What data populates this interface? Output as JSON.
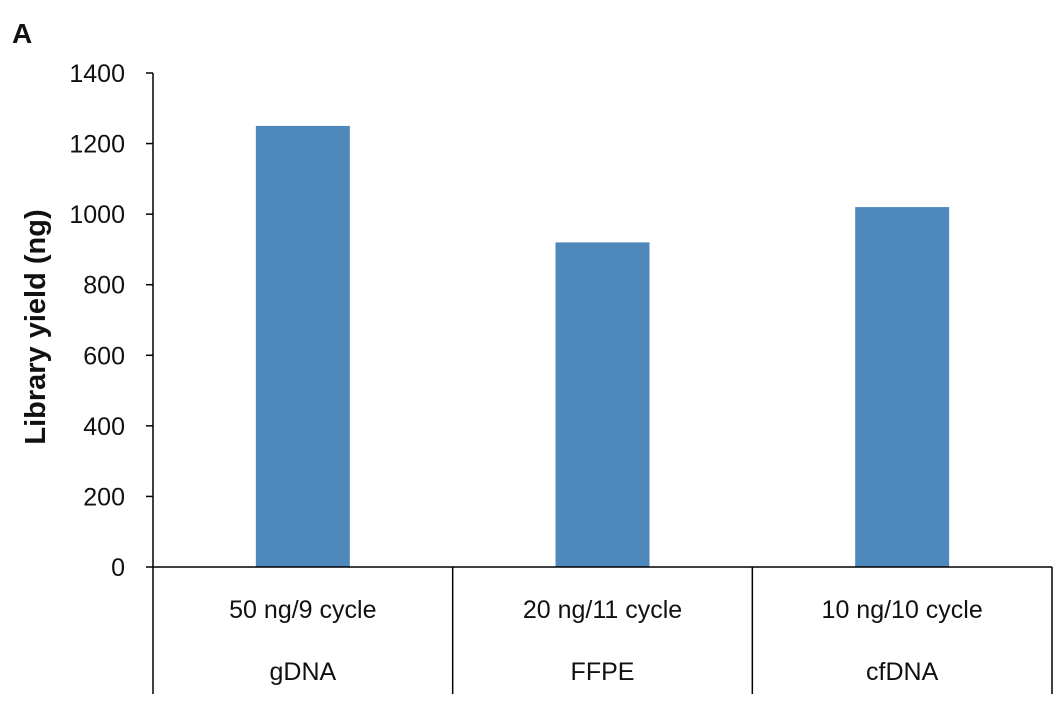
{
  "panel_label": "A",
  "chart_data": {
    "type": "bar",
    "categories": [
      {
        "line1": "50 ng/9 cycle",
        "line2": "gDNA"
      },
      {
        "line1": "20 ng/11 cycle",
        "line2": "FFPE"
      },
      {
        "line1": "10 ng/10 cycle",
        "line2": "cfDNA"
      }
    ],
    "values": [
      1250,
      920,
      1020
    ],
    "title": "",
    "xlabel": "",
    "ylabel": "Library yield (ng)",
    "ylim": [
      0,
      1400
    ],
    "yticks": [
      0,
      200,
      400,
      600,
      800,
      1000,
      1200,
      1400
    ],
    "grid": false,
    "legend": "none",
    "bar_color": "#4f88bb"
  }
}
